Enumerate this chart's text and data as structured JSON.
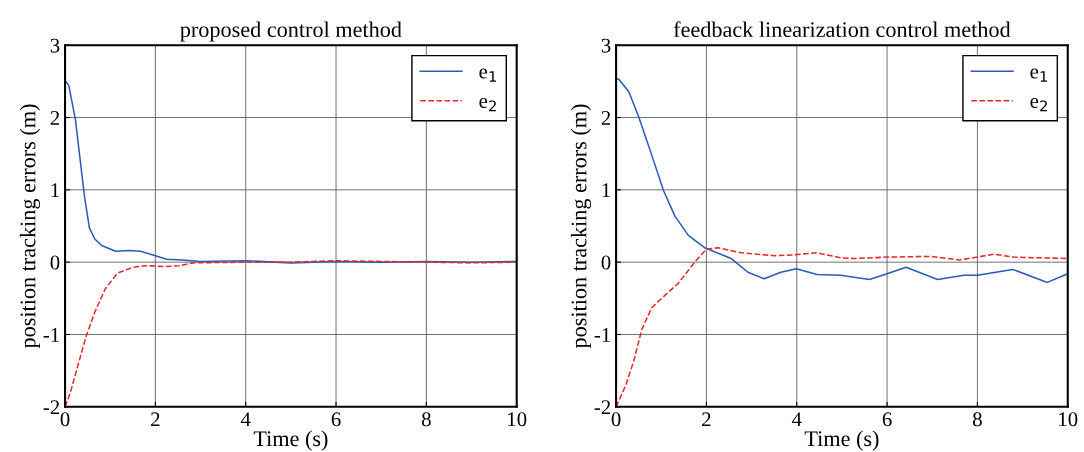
{
  "chart_data": [
    {
      "type": "line",
      "title": "proposed control method",
      "xlabel": "Time (s)",
      "ylabel": "position tracking errors (m)",
      "xlim": [
        0,
        10
      ],
      "ylim": [
        -2,
        3
      ],
      "xticks": [
        0,
        2,
        4,
        6,
        8,
        10
      ],
      "yticks": [
        -2,
        -1,
        0,
        1,
        2,
        3
      ],
      "grid": true,
      "legend": "top right",
      "series": [
        {
          "name": "e$_{1}$",
          "color": "#2a5cb4",
          "line_style": "solid",
          "x": [
            0,
            0.08,
            0.23,
            0.43,
            0.54,
            0.66,
            0.81,
            1.12,
            1.43,
            1.67,
            2.0,
            2.25,
            2.6,
            2.98,
            4,
            5,
            6,
            7,
            8,
            9,
            10
          ],
          "values": [
            2.51,
            2.45,
            1.97,
            0.91,
            0.47,
            0.32,
            0.23,
            0.15,
            0.16,
            0.15,
            0.09,
            0.04,
            0.03,
            0.01,
            0.02,
            -0.01,
            0.01,
            0,
            0.01,
            0,
            0.01
          ]
        },
        {
          "name": "e$_{2}$",
          "color": "#e8282d",
          "line_style": "dashed",
          "x": [
            0,
            0.12,
            0.27,
            0.47,
            0.66,
            0.89,
            1.16,
            1.51,
            1.82,
            2.21,
            2.52,
            2.83,
            4,
            5,
            6,
            7,
            8,
            9,
            10
          ],
          "values": [
            -2,
            -1.8,
            -1.46,
            -1.02,
            -0.69,
            -0.37,
            -0.15,
            -0.07,
            -0.05,
            -0.06,
            -0.05,
            -0.01,
            0,
            0,
            0.02,
            0.01,
            0,
            -0.01,
            0
          ]
        }
      ]
    },
    {
      "type": "line",
      "title": "feedback linearization control method",
      "xlabel": "Time (s)",
      "ylabel": "position tracking errors (m)",
      "xlim": [
        0,
        10
      ],
      "ylim": [
        -2,
        3
      ],
      "xticks": [
        0,
        2,
        4,
        6,
        8,
        10
      ],
      "yticks": [
        -2,
        -1,
        0,
        1,
        2,
        3
      ],
      "grid": true,
      "legend": "top right",
      "series": [
        {
          "name": "e$_{1}$",
          "color": "#2a5cb4",
          "line_style": "solid",
          "x": [
            0,
            0.06,
            0.28,
            0.5,
            0.79,
            1.05,
            1.3,
            1.6,
            1.96,
            2.55,
            2.92,
            3.28,
            3.65,
            3.99,
            4.45,
            4.97,
            5.61,
            6.0,
            6.42,
            7.12,
            7.7,
            8.0,
            8.78,
            9.55,
            10
          ],
          "values": [
            2.54,
            2.53,
            2.36,
            2.01,
            1.48,
            0.99,
            0.64,
            0.37,
            0.2,
            0.05,
            -0.14,
            -0.23,
            -0.14,
            -0.09,
            -0.17,
            -0.18,
            -0.24,
            -0.16,
            -0.07,
            -0.24,
            -0.18,
            -0.18,
            -0.1,
            -0.28,
            -0.16
          ]
        },
        {
          "name": "e$_{2}$",
          "color": "#e8282d",
          "line_style": "dashed",
          "x": [
            0,
            0.21,
            0.39,
            0.57,
            0.79,
            1.08,
            1.38,
            1.74,
            2.0,
            2.26,
            2.77,
            3.5,
            3.94,
            4.45,
            4.97,
            5.27,
            6.0,
            6.97,
            7.6,
            8.37,
            8.8,
            10
          ],
          "values": [
            -2,
            -1.71,
            -1.37,
            -0.93,
            -0.63,
            -0.46,
            -0.29,
            0.0,
            0.18,
            0.2,
            0.13,
            0.09,
            0.1,
            0.13,
            0.06,
            0.05,
            0.07,
            0.08,
            0.03,
            0.11,
            0.07,
            0.05
          ]
        }
      ]
    }
  ]
}
